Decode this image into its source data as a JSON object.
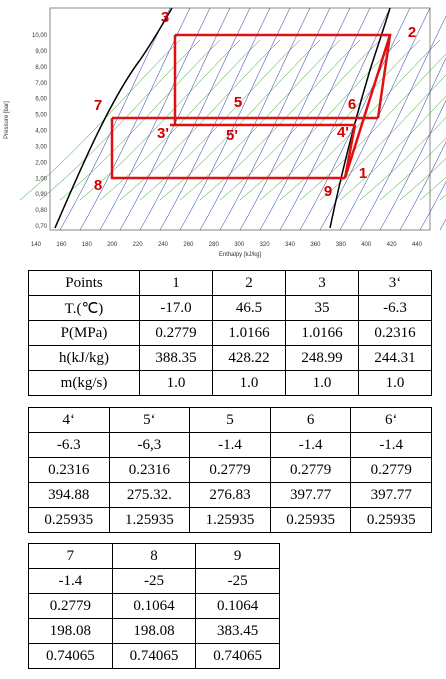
{
  "diagram": {
    "axis_y_title": "Pressure [bar]",
    "axis_x_title": "Enthalpy [kJ/kg]",
    "yticks": [
      "10,00",
      "9,00",
      "8,00",
      "7,00",
      "6,00",
      "5,00",
      "4,00",
      "3,00",
      "2,00",
      "1,00",
      "0,90",
      "0,80",
      "0,70"
    ],
    "xticks": [
      "140",
      "160",
      "180",
      "200",
      "220",
      "240",
      "260",
      "280",
      "300",
      "320",
      "340",
      "360",
      "380",
      "400",
      "420",
      "440"
    ],
    "points": [
      {
        "label": "3"
      },
      {
        "label": "2"
      },
      {
        "label": "7"
      },
      {
        "label": "5"
      },
      {
        "label": "6"
      },
      {
        "label": "3'"
      },
      {
        "label": "5'"
      },
      {
        "label": "4'"
      },
      {
        "label": "8"
      },
      {
        "label": "9"
      },
      {
        "label": "1"
      }
    ]
  },
  "table1": {
    "rows": [
      [
        "Points",
        "1",
        "2",
        "3",
        "3‘"
      ],
      [
        "T.(℃)",
        "-17.0",
        "46.5",
        "35",
        "-6.3"
      ],
      [
        "P(MPa)",
        "0.2779",
        "1.0166",
        "1.0166",
        "0.2316"
      ],
      [
        "h(kJ/kg)",
        "388.35",
        "428.22",
        "248.99",
        "244.31"
      ],
      [
        "m(kg/s)",
        "1.0",
        "1.0",
        "1.0",
        "1.0"
      ]
    ]
  },
  "table2": {
    "rows": [
      [
        "4‘",
        "5‘",
        "5",
        "6",
        "6‘"
      ],
      [
        "-6.3",
        "-6,3",
        "-1.4",
        "-1.4",
        "-1.4"
      ],
      [
        "0.2316",
        "0.2316",
        "0.2779",
        "0.2779",
        "0.2779"
      ],
      [
        "394.88",
        "275.32.",
        "276.83",
        "397.77",
        "397.77"
      ],
      [
        "0.25935",
        "1.25935",
        "1.25935",
        "0.25935",
        "0.25935"
      ]
    ]
  },
  "table3": {
    "rows": [
      [
        "7",
        "8",
        "9"
      ],
      [
        "-1.4",
        "-25",
        "-25"
      ],
      [
        "0.2779",
        "0.1064",
        "0.1064"
      ],
      [
        "198.08",
        "198.08",
        "383.45"
      ],
      [
        "0.74065",
        "0.74065",
        "0.74065"
      ]
    ]
  }
}
